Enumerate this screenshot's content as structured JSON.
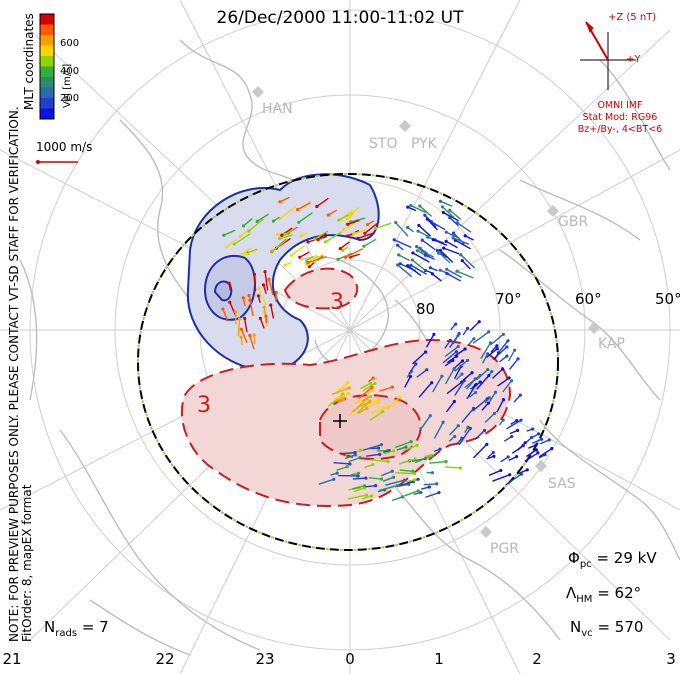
{
  "title": "26/Dec/2000 11:00-11:02 UT",
  "colorbar": {
    "unit_label": "Vel [m/s]",
    "ticks": [
      "600",
      "400",
      "200"
    ],
    "colors": [
      "#d60000",
      "#ff5a00",
      "#ff9d00",
      "#ffd400",
      "#8ed400",
      "#2fb03a",
      "#2c8a6e",
      "#2d6aa8",
      "#1f3fd0",
      "#1010e0"
    ]
  },
  "coordinate_label": "MLT coordinates",
  "scale_vector_label": "1000 m/s",
  "side_note": "NOTE: FOR PREVIEW PURPOSES ONLY. PLEASE CONTACT VT-SD STAFF FOR VERIFICATION.",
  "side_note_2": "FitOrder: 8, mapEX format",
  "imf": {
    "z_label": "+Z (5 nT)",
    "y_label": "+Y",
    "source": "OMNI IMF",
    "model": "Stat Mod: RG96",
    "condition": "Bz+/By-, 4<BT<6",
    "color": "#d40000"
  },
  "radars": [
    "HAN",
    "STO",
    "PYK",
    "GBR",
    "KAP",
    "SAS",
    "PGR"
  ],
  "latitudes": [
    "80",
    "70°",
    "60°",
    "50°"
  ],
  "contour_labels": [
    "3",
    "3"
  ],
  "stats": {
    "phi_pc": {
      "symbol": "Φ",
      "sub": "pc",
      "value": "= 29 kV"
    },
    "lambda_hm": {
      "symbol": "Λ",
      "sub": "HM",
      "value": "= 62°"
    },
    "n_vc": {
      "symbol": "N",
      "sub": "vc",
      "value": "= 570"
    },
    "n_rads": {
      "symbol": "N",
      "sub": "rads",
      "value": "= 7"
    }
  },
  "mlt_ticks": [
    "21",
    "22",
    "23",
    "0",
    "1",
    "2",
    "3"
  ],
  "colors": {
    "positive_cell": "#f3d6d6",
    "negative_cell": "#d9dcee",
    "positive_contour": "#c81e1e",
    "negative_contour": "#1a2fa8",
    "grid": "#cfcfcf",
    "coast": "#bdbdbd"
  }
}
